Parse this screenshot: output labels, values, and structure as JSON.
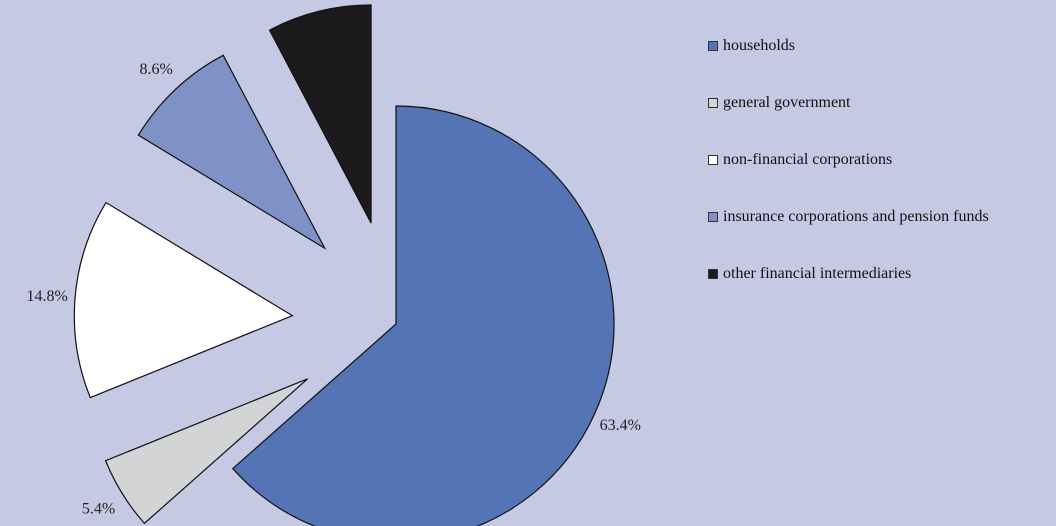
{
  "chart_data": {
    "type": "pie",
    "title": "",
    "legend_position": "right",
    "slices": [
      {
        "label": "households",
        "value": 63.4,
        "value_label": "63.4%",
        "color": "#5574b6",
        "exploded": false
      },
      {
        "label": "general government",
        "value": 5.4,
        "value_label": "5.4%",
        "color": "#d3d4d6",
        "exploded": true
      },
      {
        "label": "non-financial corporations",
        "value": 14.8,
        "value_label": "14.8%",
        "color": "#ffffff",
        "exploded": true
      },
      {
        "label": "insurance corporations and pension funds",
        "value": 8.6,
        "value_label": "8.6%",
        "color": "#7f92c7",
        "exploded": true
      },
      {
        "label": "other financial intermediaries",
        "value": 7.7,
        "value_label": "7.7%",
        "color": "#1c1a1d",
        "exploded": true
      }
    ]
  }
}
